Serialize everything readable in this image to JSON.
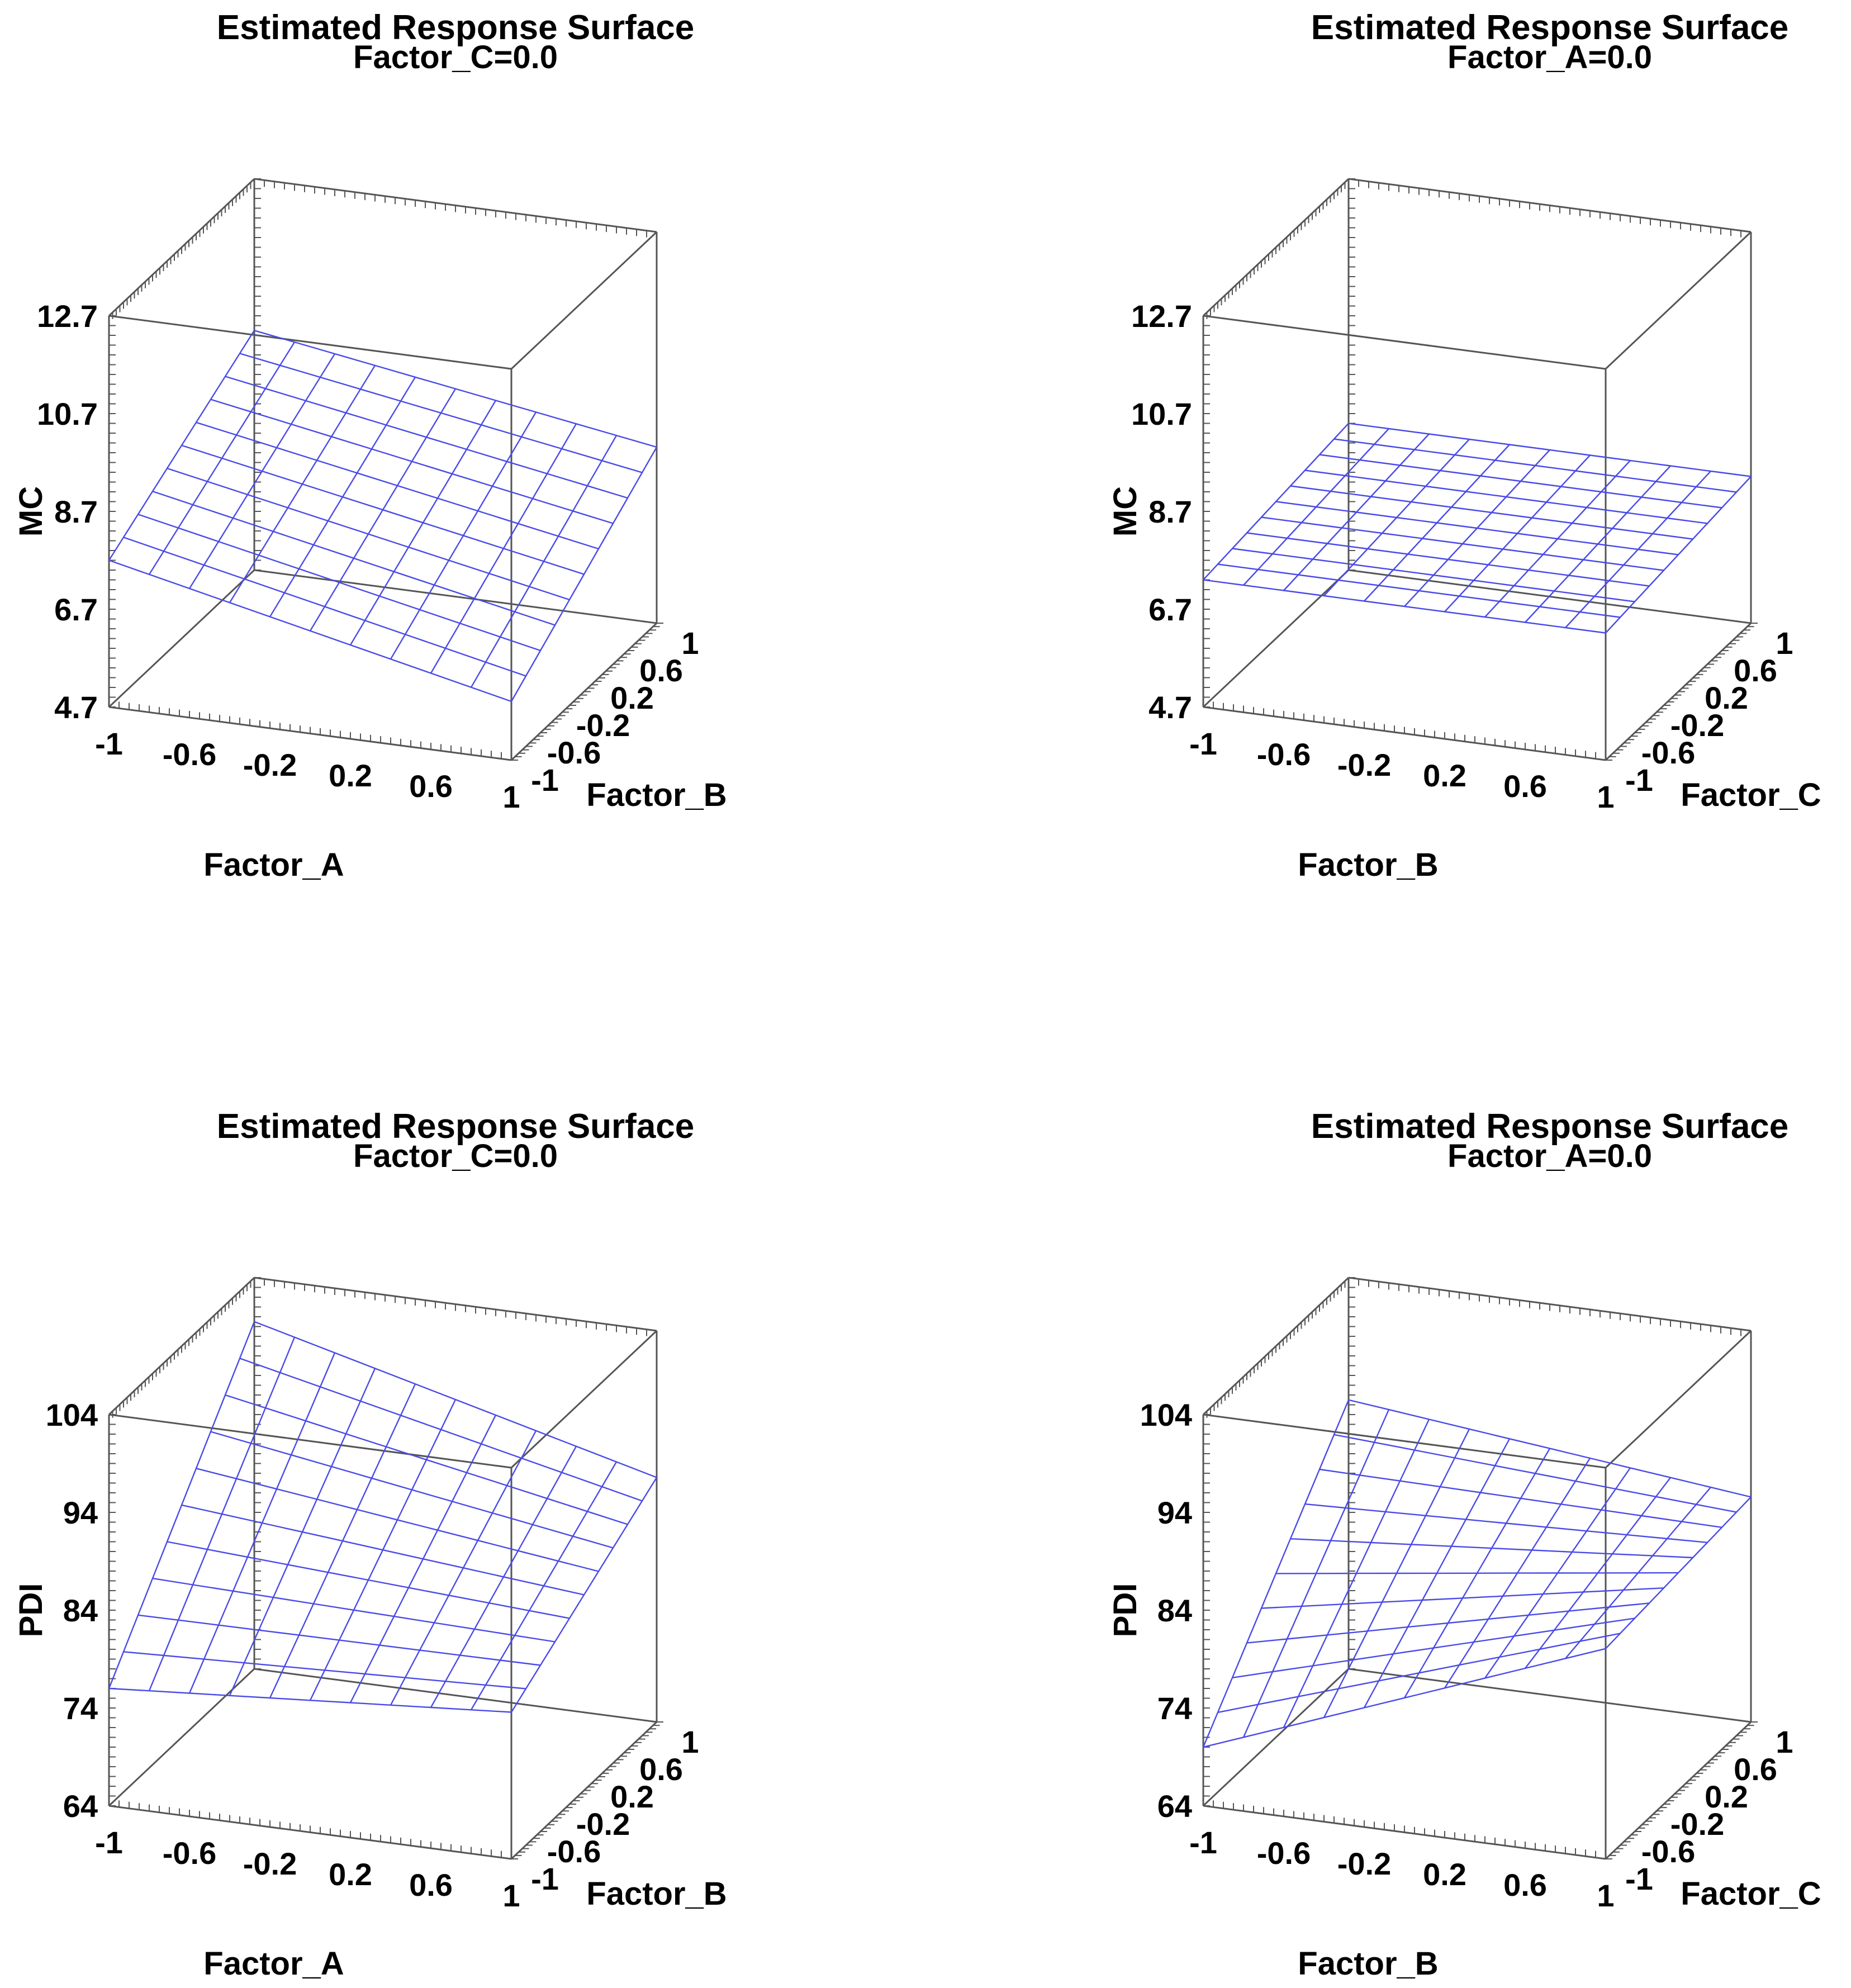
{
  "chart_data": [
    {
      "type": "surface",
      "title": "Estimated Response Surface",
      "subtitle": "Factor_C=0.0",
      "xlabel": "Factor_A",
      "ylabel": "Factor_B",
      "zlabel": "MC",
      "x_ticks": [
        "-1",
        "-0.6",
        "-0.2",
        "0.2",
        "0.6",
        "1"
      ],
      "y_ticks": [
        "-1",
        "-0.6",
        "-0.2",
        "0.2",
        "0.6",
        "1"
      ],
      "z_ticks": [
        "4.7",
        "6.7",
        "8.7",
        "10.7",
        "12.7"
      ],
      "xlim": [
        -1,
        1
      ],
      "ylim": [
        -1,
        1
      ],
      "zlim": [
        4.7,
        12.7
      ],
      "surface_corners": {
        "x-1_y-1": 7.7,
        "x1_y-1": 5.9,
        "x-1_y1": 9.6,
        "x1_y1": 8.3
      },
      "grid_divisions": 10,
      "line_color": "#4a4ae8"
    },
    {
      "type": "surface",
      "title": "Estimated Response Surface",
      "subtitle": "Factor_A=0.0",
      "xlabel": "Factor_B",
      "ylabel": "Factor_C",
      "zlabel": "MC",
      "x_ticks": [
        "-1",
        "-0.6",
        "-0.2",
        "0.2",
        "0.6",
        "1"
      ],
      "y_ticks": [
        "-1",
        "-0.6",
        "-0.2",
        "0.2",
        "0.6",
        "1"
      ],
      "z_ticks": [
        "4.7",
        "6.7",
        "8.7",
        "10.7",
        "12.7"
      ],
      "xlim": [
        -1,
        1
      ],
      "ylim": [
        -1,
        1
      ],
      "zlim": [
        4.7,
        12.7
      ],
      "surface_corners": {
        "x-1_y-1": 7.3,
        "x1_y-1": 7.3,
        "x-1_y1": 7.7,
        "x1_y1": 7.7
      },
      "grid_divisions": 10,
      "line_color": "#4a4ae8"
    },
    {
      "type": "surface",
      "title": "Estimated Response Surface",
      "subtitle": "Factor_C=0.0",
      "xlabel": "Factor_A",
      "ylabel": "Factor_B",
      "zlabel": "PDI",
      "x_ticks": [
        "-1",
        "-0.6",
        "-0.2",
        "0.2",
        "0.6",
        "1"
      ],
      "y_ticks": [
        "-1",
        "-0.6",
        "-0.2",
        "0.2",
        "0.6",
        "1"
      ],
      "z_ticks": [
        "64",
        "74",
        "84",
        "94",
        "104"
      ],
      "xlim": [
        -1,
        1
      ],
      "ylim": [
        -1,
        1
      ],
      "zlim": [
        64,
        104
      ],
      "surface_corners": {
        "x-1_y-1": 76,
        "x1_y-1": 79,
        "x-1_y1": 99.5,
        "x1_y1": 89
      },
      "grid_divisions": 10,
      "line_color": "#4a4ae8"
    },
    {
      "type": "surface",
      "title": "Estimated Response Surface",
      "subtitle": "Factor_A=0.0",
      "xlabel": "Factor_B",
      "ylabel": "Factor_C",
      "zlabel": "PDI",
      "x_ticks": [
        "-1",
        "-0.6",
        "-0.2",
        "0.2",
        "0.6",
        "1"
      ],
      "y_ticks": [
        "-1",
        "-0.6",
        "-0.2",
        "0.2",
        "0.6",
        "1"
      ],
      "z_ticks": [
        "64",
        "74",
        "84",
        "94",
        "104"
      ],
      "xlim": [
        -1,
        1
      ],
      "ylim": [
        -1,
        1
      ],
      "zlim": [
        64,
        104
      ],
      "surface_corners": {
        "x-1_y-1": 70,
        "x1_y-1": 85.5,
        "x-1_y1": 91.5,
        "x1_y1": 87
      },
      "grid_divisions": 10,
      "line_color": "#4a4ae8"
    }
  ]
}
